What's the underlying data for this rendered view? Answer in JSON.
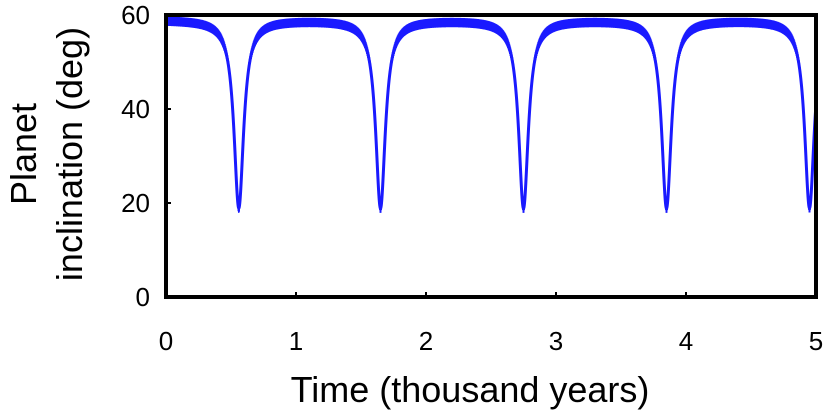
{
  "chart_data": {
    "type": "line",
    "title": "",
    "xlabel": "Time (thousand years)",
    "ylabel_lines": [
      "Planet",
      "inclination (deg)"
    ],
    "xlim": [
      0,
      5
    ],
    "ylim": [
      0,
      60
    ],
    "x_ticks": [
      0,
      1,
      2,
      3,
      4,
      5
    ],
    "y_ticks": [
      0,
      20,
      40,
      60
    ],
    "grid": false,
    "line_color": "#1a1aff",
    "series": [
      {
        "model": "periodic-dips",
        "baseline": 59,
        "minimum": 19,
        "dip_times": [
          0.56,
          1.65,
          2.75,
          3.85,
          4.95
        ],
        "period": 1.1,
        "oscillation_amplitude": 1
      }
    ]
  }
}
